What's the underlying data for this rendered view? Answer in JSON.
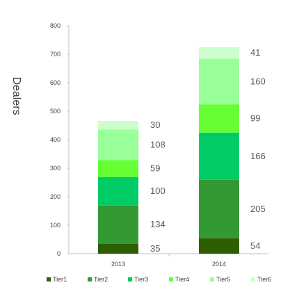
{
  "chart_data": {
    "type": "bar",
    "stacked": true,
    "title": "",
    "xlabel": "",
    "ylabel": "Dealers",
    "ylim": [
      0,
      800
    ],
    "yticks": [
      0,
      100,
      200,
      300,
      400,
      500,
      600,
      700,
      800
    ],
    "grid": false,
    "legend_position": "bottom",
    "categories": [
      "2013",
      "2014"
    ],
    "series": [
      {
        "name": "Tier1",
        "color": "#2f5e00",
        "values": [
          35,
          54
        ]
      },
      {
        "name": "Tier2",
        "color": "#339933",
        "values": [
          134,
          205
        ]
      },
      {
        "name": "Tier3",
        "color": "#00cc66",
        "values": [
          100,
          166
        ]
      },
      {
        "name": "Tier4",
        "color": "#66ff33",
        "values": [
          59,
          99
        ]
      },
      {
        "name": "Tier5",
        "color": "#99ff99",
        "values": [
          108,
          160
        ]
      },
      {
        "name": "Tier6",
        "color": "#ccffcc",
        "values": [
          30,
          41
        ]
      }
    ]
  }
}
